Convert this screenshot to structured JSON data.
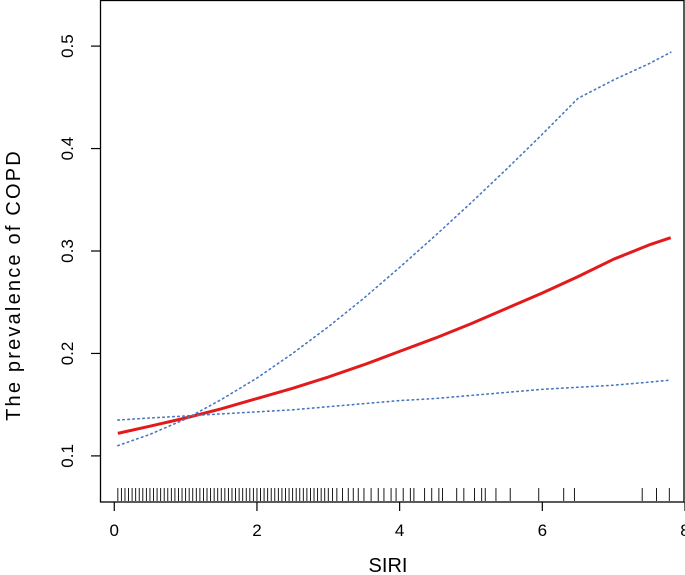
{
  "chart_data": {
    "type": "line",
    "title": "",
    "xlabel": "SIRI",
    "ylabel": "The prevalence of COPD",
    "xlim": [
      -0.2,
      8.0
    ],
    "ylim": [
      0.055,
      0.545
    ],
    "x_ticks": [
      0,
      2,
      4,
      6,
      8
    ],
    "x_tick_labels": [
      "0",
      "2",
      "4",
      "6",
      "8"
    ],
    "y_ticks": [
      0.1,
      0.2,
      0.3,
      0.4,
      0.5
    ],
    "y_tick_labels": [
      "0.1",
      "0.2",
      "0.3",
      "0.4",
      "0.5"
    ],
    "grid": false,
    "legend": "none",
    "x": [
      0.05,
      0.5,
      1.0,
      1.5,
      2.0,
      2.5,
      3.0,
      3.5,
      4.0,
      4.5,
      5.0,
      5.5,
      6.0,
      6.5,
      7.0,
      7.5,
      7.8
    ],
    "series": [
      {
        "style": "solid",
        "color": "#e31a1c",
        "values": [
          0.122,
          0.129,
          0.137,
          0.146,
          0.156,
          0.166,
          0.177,
          0.189,
          0.202,
          0.215,
          0.229,
          0.244,
          0.259,
          0.275,
          0.292,
          0.306,
          0.313
        ]
      },
      {
        "style": "dotted",
        "color": "#4a78c0",
        "values": [
          0.11,
          0.121,
          0.136,
          0.155,
          0.176,
          0.2,
          0.226,
          0.254,
          0.284,
          0.315,
          0.347,
          0.38,
          0.414,
          0.449,
          0.467,
          0.483,
          0.494
        ]
      },
      {
        "style": "dotted",
        "color": "#4a78c0",
        "values": [
          0.135,
          0.137,
          0.139,
          0.141,
          0.143,
          0.145,
          0.148,
          0.151,
          0.154,
          0.156,
          0.159,
          0.162,
          0.165,
          0.167,
          0.169,
          0.172,
          0.174
        ]
      }
    ],
    "rug": [
      0.05,
      0.1,
      0.15,
      0.2,
      0.25,
      0.3,
      0.35,
      0.4,
      0.45,
      0.5,
      0.55,
      0.6,
      0.65,
      0.7,
      0.75,
      0.8,
      0.85,
      0.9,
      0.95,
      1.0,
      1.05,
      1.1,
      1.15,
      1.2,
      1.25,
      1.3,
      1.35,
      1.4,
      1.45,
      1.5,
      1.55,
      1.6,
      1.65,
      1.7,
      1.75,
      1.8,
      1.85,
      1.9,
      1.95,
      2.0,
      2.05,
      2.1,
      2.15,
      2.2,
      2.25,
      2.3,
      2.35,
      2.4,
      2.45,
      2.5,
      2.55,
      2.6,
      2.65,
      2.7,
      2.75,
      2.8,
      2.85,
      2.9,
      2.95,
      3.0,
      3.06,
      3.12,
      3.2,
      3.28,
      3.35,
      3.42,
      3.5,
      3.6,
      3.7,
      3.78,
      3.88,
      3.95,
      4.05,
      4.15,
      4.2,
      4.35,
      4.45,
      4.55,
      4.6,
      4.8,
      4.9,
      5.05,
      5.15,
      5.2,
      5.35,
      5.55,
      5.95,
      6.3,
      6.45,
      7.4,
      7.6,
      7.78
    ],
    "line_color": "#e31a1c",
    "ci_color": "#4a78c0"
  }
}
